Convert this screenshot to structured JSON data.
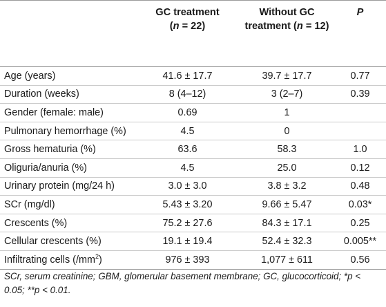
{
  "table": {
    "headers": [
      {
        "text": "",
        "n_label": "",
        "n_value": ""
      },
      {
        "text": "GC treatment",
        "n_label": "n",
        "n_value": " = 22"
      },
      {
        "text": "Without GC treatment",
        "n_label": "n",
        "n_value": " = 12"
      },
      {
        "text": "P",
        "n_label": "",
        "n_value": ""
      }
    ],
    "rows": [
      {
        "label": "Age (years)",
        "gc": "41.6 ± 17.7",
        "no_gc": "39.7 ± 17.7",
        "p": "0.77"
      },
      {
        "label": "Duration (weeks)",
        "gc": "8 (4–12)",
        "no_gc": "3 (2–7)",
        "p": "0.39"
      },
      {
        "label": "Gender (female: male)",
        "gc": "0.69",
        "no_gc": "1",
        "p": ""
      },
      {
        "label": "Pulmonary hemorrhage (%)",
        "gc": "4.5",
        "no_gc": "0",
        "p": ""
      },
      {
        "label": "Gross hematuria (%)",
        "gc": "63.6",
        "no_gc": "58.3",
        "p": "1.0"
      },
      {
        "label": "Oliguria/anuria (%)",
        "gc": "4.5",
        "no_gc": "25.0",
        "p": "0.12"
      },
      {
        "label": "Urinary protein (mg/24 h)",
        "gc": "3.0 ± 3.0",
        "no_gc": "3.8 ± 3.2",
        "p": "0.48"
      },
      {
        "label": "SCr (mg/dl)",
        "gc": "5.43 ± 3.20",
        "no_gc": "9.66 ± 5.47",
        "p": "0.03*"
      },
      {
        "label": "Crescents (%)",
        "gc": "75.2 ± 27.6",
        "no_gc": "84.3 ± 17.1",
        "p": "0.25"
      },
      {
        "label": "Cellular crescents (%)",
        "gc": "19.1 ± 19.4",
        "no_gc": "52.4 ± 32.3",
        "p": "0.005**"
      },
      {
        "label": "Infiltrating cells (/mm",
        "label_sup": "2",
        "label_after": ")",
        "gc": "976 ± 393",
        "no_gc": "1,077 ± 611",
        "p": "0.56"
      }
    ]
  },
  "footnote": "SCr, serum creatinine; GBM, glomerular basement membrane; GC, glucocorticoid; *p < 0.05; **p < 0.01."
}
